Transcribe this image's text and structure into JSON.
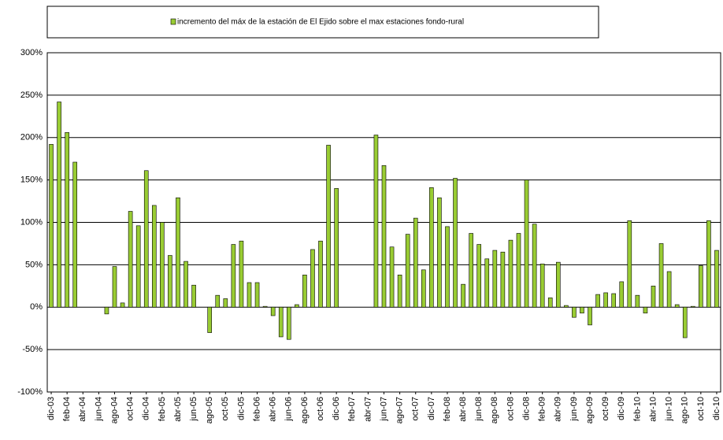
{
  "chart_data": {
    "type": "bar",
    "legend_label": "incremento del máx de la estación de El Ejido sobre el max estaciones fondo-rural",
    "color": "#99cc33",
    "categories": [
      "dic-03",
      null,
      "feb-04",
      null,
      "abr-04",
      null,
      "jun-04",
      null,
      "ago-04",
      null,
      "oct-04",
      null,
      "dic-04",
      null,
      "feb-05",
      null,
      "abr-05",
      null,
      "jun-05",
      null,
      "ago-05",
      null,
      "oct-05",
      null,
      "dic-05",
      null,
      "feb-06",
      null,
      "abr-06",
      null,
      "jun-06",
      null,
      "ago-06",
      null,
      "oct-06",
      null,
      "dic-06",
      null,
      "feb-07",
      null,
      "abr-07",
      null,
      "jun-07",
      null,
      "ago-07",
      null,
      "oct-07",
      null,
      "dic-07",
      null,
      "feb-08",
      null,
      "abr-08",
      null,
      "jun-08",
      null,
      "ago-08",
      null,
      "oct-08",
      null,
      "dic-08",
      null,
      "feb-09",
      null,
      "abr-09",
      null,
      "jun-09",
      null,
      "ago-09",
      null,
      "oct-09",
      null,
      "dic-09",
      null,
      "feb-10",
      null,
      "abr-10",
      null,
      "jun-10",
      null,
      "ago-10",
      null,
      "oct-10",
      null,
      "dic-10"
    ],
    "values": [
      192,
      242,
      206,
      171,
      null,
      null,
      null,
      -8,
      48,
      5,
      113,
      96,
      161,
      120,
      100,
      61,
      129,
      54,
      26,
      null,
      -30,
      14,
      10,
      74,
      78,
      29,
      29,
      1,
      -10,
      -35,
      -38,
      3,
      38,
      68,
      78,
      191,
      140,
      null,
      null,
      null,
      null,
      203,
      167,
      71,
      38,
      86,
      105,
      44,
      141,
      129,
      95,
      152,
      27,
      87,
      74,
      57,
      67,
      65,
      79,
      87,
      150,
      98,
      51,
      11,
      53,
      2,
      -12,
      -7,
      -21,
      15,
      17,
      16,
      30,
      102,
      14,
      -7,
      25,
      75,
      42,
      3,
      -36,
      1,
      49,
      102,
      67
    ],
    "ylim": [
      -100,
      300
    ],
    "yticks": [
      {
        "value": -100,
        "label": "-100%"
      },
      {
        "value": -50,
        "label": "-50%"
      },
      {
        "value": 0,
        "label": "0%"
      },
      {
        "value": 50,
        "label": "50%"
      },
      {
        "value": 100,
        "label": "100%"
      },
      {
        "value": 150,
        "label": "150%"
      },
      {
        "value": 200,
        "label": "200%"
      },
      {
        "value": 250,
        "label": "250%"
      },
      {
        "value": 300,
        "label": "300%"
      }
    ],
    "grid": true
  }
}
